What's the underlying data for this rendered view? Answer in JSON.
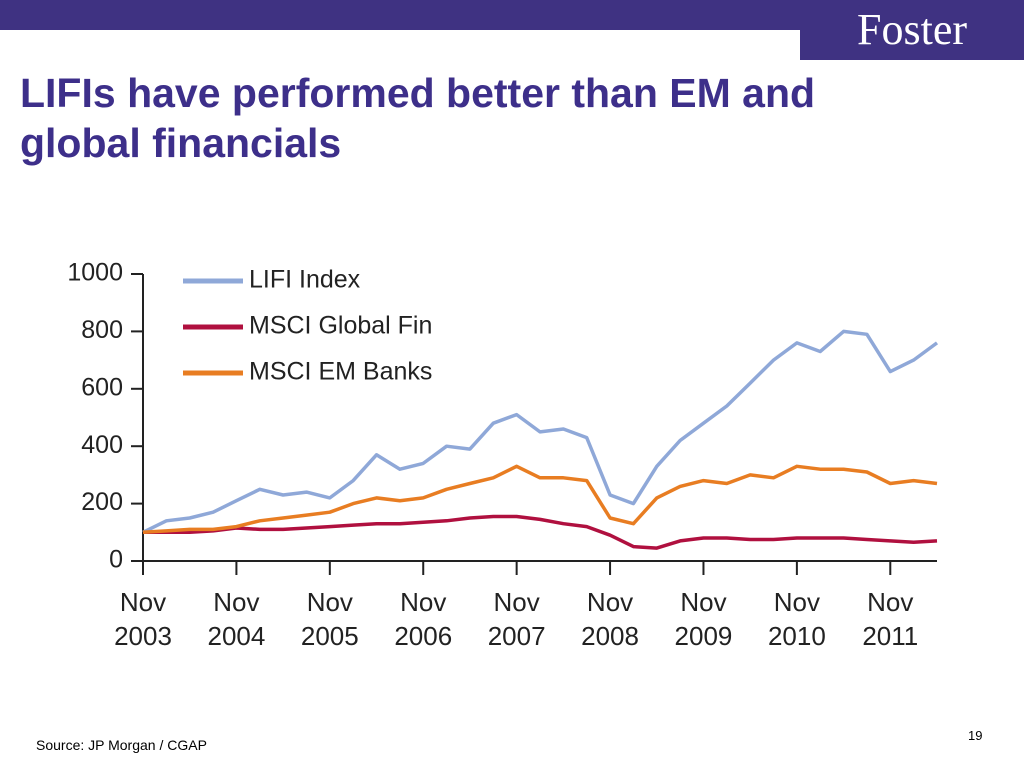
{
  "slide": {
    "logo": "Foster",
    "title": "LIFIs have performed better than EM and global financials",
    "source": "Source: JP Morgan / CGAP",
    "page_number": "19"
  },
  "chart_data": {
    "type": "line",
    "x": [
      "2003-11",
      "2004-02",
      "2004-05",
      "2004-08",
      "2004-11",
      "2005-02",
      "2005-05",
      "2005-08",
      "2005-11",
      "2006-02",
      "2006-05",
      "2006-08",
      "2006-11",
      "2007-02",
      "2007-05",
      "2007-08",
      "2007-11",
      "2008-02",
      "2008-05",
      "2008-08",
      "2008-11",
      "2009-02",
      "2009-05",
      "2009-08",
      "2009-11",
      "2010-02",
      "2010-05",
      "2010-08",
      "2010-11",
      "2011-02",
      "2011-05",
      "2011-08",
      "2011-11",
      "2012-02",
      "2012-05"
    ],
    "series": [
      {
        "name": "LIFI Index",
        "color": "#8fa8d8",
        "values": [
          100,
          140,
          150,
          170,
          210,
          250,
          230,
          240,
          220,
          280,
          370,
          320,
          340,
          400,
          390,
          480,
          510,
          450,
          460,
          430,
          230,
          200,
          330,
          420,
          480,
          540,
          620,
          700,
          760,
          730,
          800,
          790,
          660,
          700,
          760
        ]
      },
      {
        "name": "MSCI Global Fin",
        "color": "#b0103f",
        "values": [
          100,
          100,
          100,
          105,
          115,
          110,
          110,
          115,
          120,
          125,
          130,
          130,
          135,
          140,
          150,
          155,
          155,
          145,
          130,
          120,
          90,
          50,
          45,
          70,
          80,
          80,
          75,
          75,
          80,
          80,
          80,
          75,
          70,
          65,
          70
        ]
      },
      {
        "name": "MSCI EM Banks",
        "color": "#e87d22",
        "values": [
          100,
          105,
          110,
          110,
          120,
          140,
          150,
          160,
          170,
          200,
          220,
          210,
          220,
          250,
          270,
          290,
          330,
          290,
          290,
          280,
          150,
          130,
          220,
          260,
          280,
          270,
          300,
          290,
          330,
          320,
          320,
          310,
          270,
          280,
          270
        ]
      }
    ],
    "xlim": [
      "2003-11",
      "2012-05"
    ],
    "xticks": [
      {
        "value": "2003-11",
        "label": "Nov 2003"
      },
      {
        "value": "2004-11",
        "label": "Nov 2004"
      },
      {
        "value": "2005-11",
        "label": "Nov 2005"
      },
      {
        "value": "2006-11",
        "label": "Nov 2006"
      },
      {
        "value": "2007-11",
        "label": "Nov 2007"
      },
      {
        "value": "2008-11",
        "label": "Nov 2008"
      },
      {
        "value": "2009-11",
        "label": "Nov 2009"
      },
      {
        "value": "2010-11",
        "label": "Nov 2010"
      },
      {
        "value": "2011-11",
        "label": "Nov 2011"
      }
    ],
    "ylim": [
      0,
      1000
    ],
    "yticks": [
      0,
      200,
      400,
      600,
      800,
      1000
    ],
    "grid": false,
    "legend": "upper-left"
  }
}
